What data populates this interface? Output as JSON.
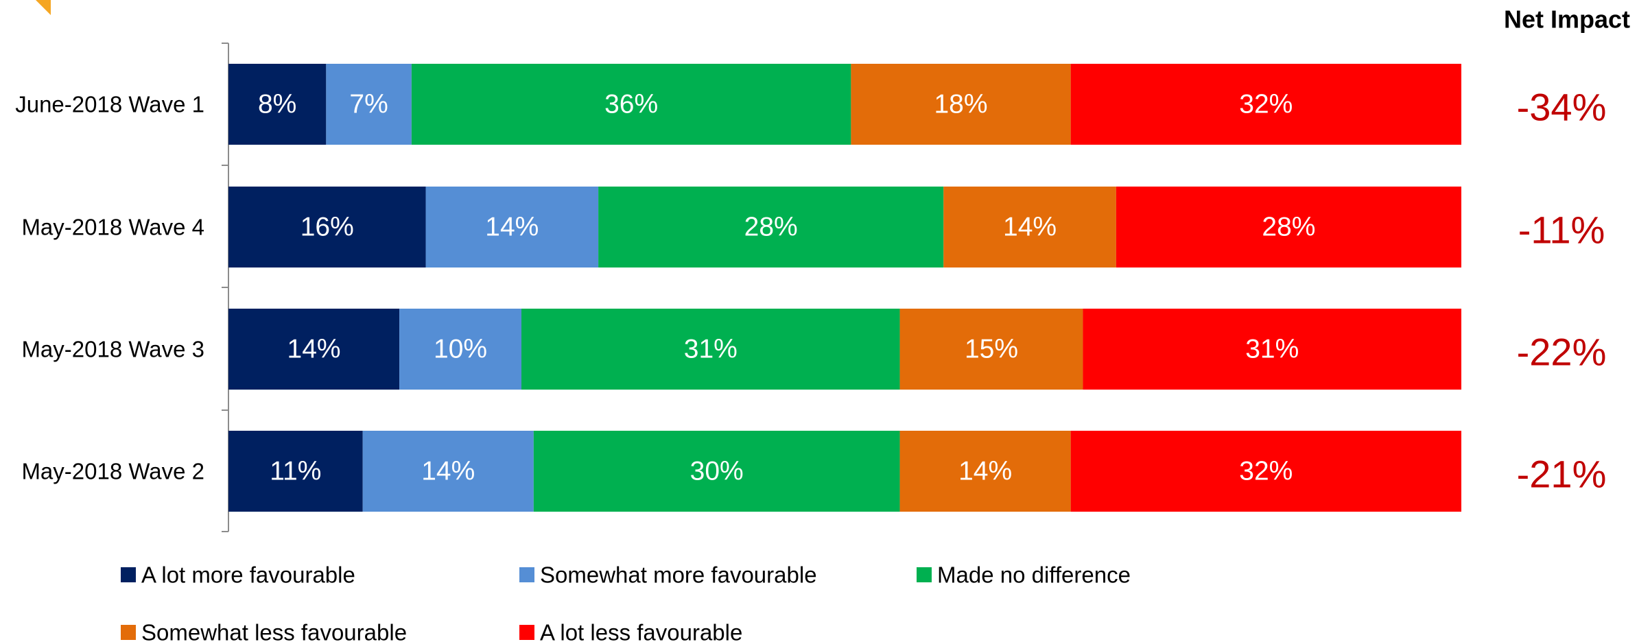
{
  "chart_data": {
    "type": "bar",
    "orientation": "horizontal",
    "stacked": true,
    "normalized": true,
    "categories": [
      "June-2018 Wave 1",
      "May-2018 Wave 4",
      "May-2018 Wave 3",
      "May-2018 Wave 2"
    ],
    "series": [
      {
        "name": "A lot more favourable",
        "color": "#002060",
        "values": [
          8,
          16,
          14,
          11
        ],
        "labels": [
          "8%",
          "16%",
          "14%",
          "11%"
        ]
      },
      {
        "name": "Somewhat more favourable",
        "color": "#558ed5",
        "values": [
          7,
          14,
          10,
          14
        ],
        "labels": [
          "7%",
          "14%",
          "10%",
          "14%"
        ]
      },
      {
        "name": "Made no difference",
        "color": "#00b050",
        "values": [
          36,
          28,
          31,
          30
        ],
        "labels": [
          "36%",
          "28%",
          "31%",
          "30%"
        ]
      },
      {
        "name": "Somewhat less favourable",
        "color": "#e36c09",
        "values": [
          18,
          14,
          15,
          14
        ],
        "labels": [
          "18%",
          "14%",
          "15%",
          "14%"
        ]
      },
      {
        "name": "A lot less favourable",
        "color": "#ff0000",
        "values": [
          32,
          28,
          31,
          32
        ],
        "labels": [
          "32%",
          "28%",
          "31%",
          "32%"
        ]
      }
    ],
    "net_impact": {
      "heading": "Net Impact",
      "values": [
        "-34%",
        "-11%",
        "-22%",
        "-21%"
      ],
      "color": "#c00000"
    },
    "legend_position": "bottom-left",
    "grid": false,
    "data_label_color": "#ffffff",
    "corner_mark_color": "#f5a623"
  }
}
